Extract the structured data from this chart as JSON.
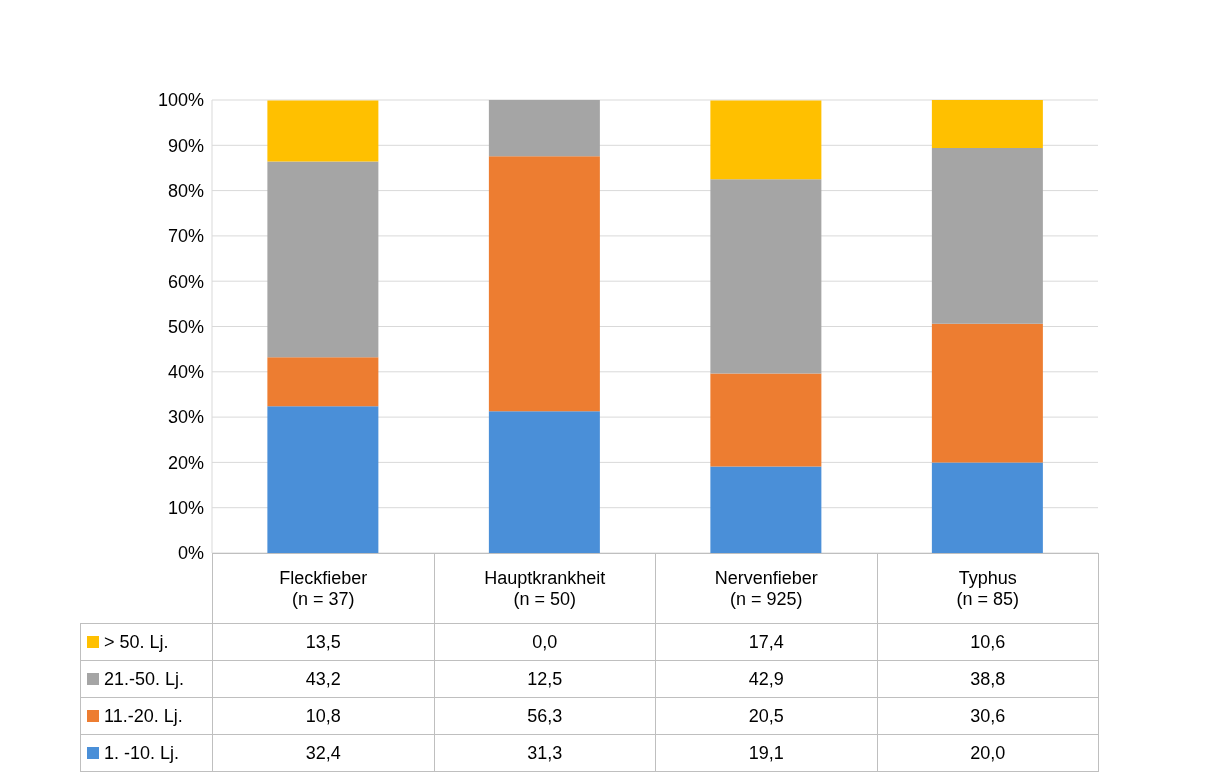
{
  "chart_data": {
    "type": "bar",
    "stacked": true,
    "categories": [
      "Fleckfieber\n(n = 37)",
      "Hauptkrankheit\n(n = 50)",
      "Nervenfieber\n(n = 925)",
      "Typhus\n(n = 85)"
    ],
    "series": [
      {
        "name": "1. -10. Lj.",
        "color": "#4a8fd8",
        "values": [
          32.4,
          31.3,
          19.1,
          20.0
        ],
        "value_labels": [
          "32,4",
          "31,3",
          "19,1",
          "20,0"
        ]
      },
      {
        "name": "11.-20. Lj.",
        "color": "#ed7d31",
        "values": [
          10.8,
          56.3,
          20.5,
          30.6
        ],
        "value_labels": [
          "10,8",
          "56,3",
          "20,5",
          "30,6"
        ]
      },
      {
        "name": "21.-50. Lj.",
        "color": "#a5a5a5",
        "values": [
          43.2,
          12.5,
          42.9,
          38.8
        ],
        "value_labels": [
          "43,2",
          "12,5",
          "42,9",
          "38,8"
        ]
      },
      {
        "name": "> 50. Lj.",
        "color": "#ffc000",
        "values": [
          13.5,
          0.0,
          17.4,
          10.6
        ],
        "value_labels": [
          "13,5",
          "0,0",
          "17,4",
          "10,6"
        ]
      }
    ],
    "ylim": [
      0,
      100
    ],
    "yticks": [
      {
        "value": 0,
        "label": "0%"
      },
      {
        "value": 10,
        "label": "10%"
      },
      {
        "value": 20,
        "label": "20%"
      },
      {
        "value": 30,
        "label": "30%"
      },
      {
        "value": 40,
        "label": "40%"
      },
      {
        "value": 50,
        "label": "50%"
      },
      {
        "value": 60,
        "label": "60%"
      },
      {
        "value": 70,
        "label": "70%"
      },
      {
        "value": 80,
        "label": "80%"
      },
      {
        "value": 90,
        "label": "90%"
      },
      {
        "value": 100,
        "label": "100%"
      }
    ],
    "grid": "y",
    "legend": "bottom left"
  }
}
